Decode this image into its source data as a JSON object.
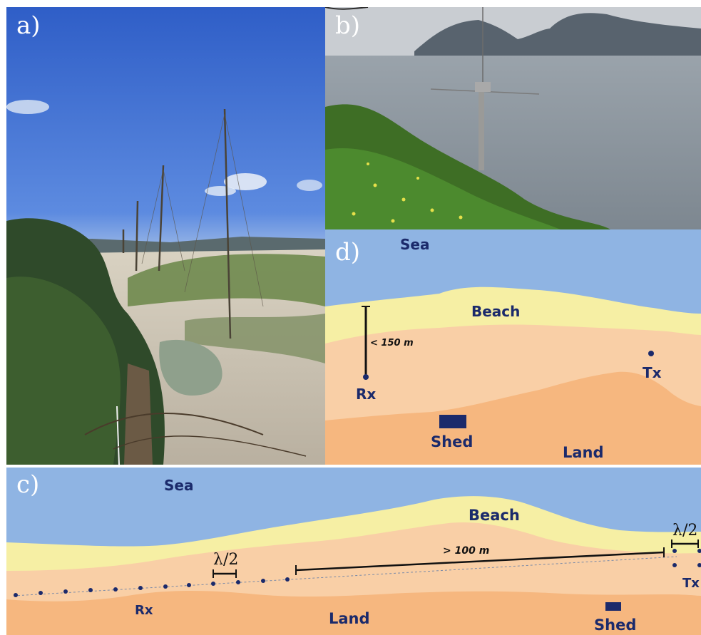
{
  "panels": {
    "a": {
      "label": "a)"
    },
    "b": {
      "label": "b)"
    },
    "c": {
      "label": "c)",
      "sea": "Sea",
      "beach": "Beach",
      "land": "Land",
      "rx": "Rx",
      "tx": "Tx",
      "shed": "Shed",
      "distance": "> 100 m",
      "lambda_left": "λ/2",
      "lambda_right": "λ/2"
    },
    "d": {
      "label": "d)",
      "sea": "Sea",
      "beach": "Beach",
      "land": "Land",
      "rx": "Rx",
      "tx": "Tx",
      "shed": "Shed",
      "distance": "< 150 m"
    }
  },
  "colors": {
    "sea": "#8fb4e3",
    "beach": "#f6efa4",
    "land_light": "#f9cfa6",
    "land_dark": "#f6b77f",
    "marker": "#1b2a6b"
  }
}
